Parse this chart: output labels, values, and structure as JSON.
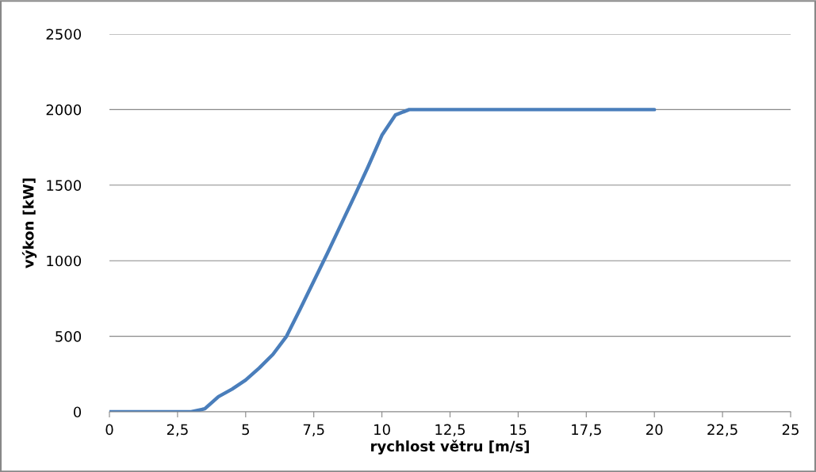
{
  "chart_data": {
    "type": "line",
    "xlabel": "rychlost větru [m/s]",
    "ylabel": "výkon [kW]",
    "x": [
      0,
      1,
      2,
      2.5,
      3,
      3.5,
      4,
      4.5,
      5,
      5.5,
      6,
      6.5,
      7,
      7.5,
      8,
      8.5,
      9,
      9.5,
      10,
      10.5,
      11,
      11.5,
      12,
      13,
      14,
      15,
      16,
      17,
      18,
      19,
      20
    ],
    "series": [
      {
        "color": "#4a7ebb",
        "values": [
          0,
          0,
          0,
          0,
          0,
          20,
          100,
          150,
          210,
          290,
          380,
          500,
          680,
          865,
          1050,
          1240,
          1430,
          1625,
          1830,
          1965,
          2000,
          2000,
          2000,
          2000,
          2000,
          2000,
          2000,
          2000,
          2000,
          2000,
          2000
        ]
      }
    ],
    "xlim": [
      0,
      25
    ],
    "xticks": [
      {
        "value": 0,
        "label": "0"
      },
      {
        "value": 2.5,
        "label": "2,5"
      },
      {
        "value": 5,
        "label": "5"
      },
      {
        "value": 7.5,
        "label": "7,5"
      },
      {
        "value": 10,
        "label": "10"
      },
      {
        "value": 12.5,
        "label": "12,5"
      },
      {
        "value": 15,
        "label": "15"
      },
      {
        "value": 17.5,
        "label": "17,5"
      },
      {
        "value": 20,
        "label": "20"
      },
      {
        "value": 22.5,
        "label": "22,5"
      },
      {
        "value": 25,
        "label": "25"
      }
    ],
    "ylim": [
      0,
      2500
    ],
    "yticks": [
      0,
      500,
      1000,
      1500,
      2000,
      2500
    ],
    "grid": "y",
    "legend": false,
    "marker": "none",
    "line_style": "solid"
  }
}
